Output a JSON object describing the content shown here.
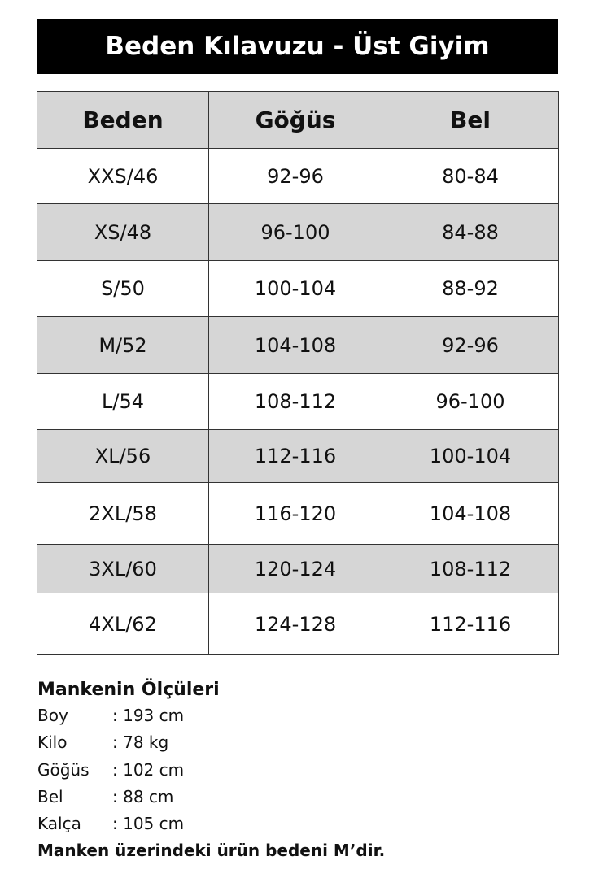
{
  "title": "Beden Kılavuzu - Üst Giyim",
  "table": {
    "headers": [
      "Beden",
      "Göğüs",
      "Bel"
    ],
    "rows": [
      [
        "XXS/46",
        "92-96",
        "80-84"
      ],
      [
        "XS/48",
        "96-100",
        "84-88"
      ],
      [
        "S/50",
        "100-104",
        "88-92"
      ],
      [
        "M/52",
        "104-108",
        "92-96"
      ],
      [
        "L/54",
        "108-112",
        "96-100"
      ],
      [
        "XL/56",
        "112-116",
        "100-104"
      ],
      [
        "2XL/58",
        "116-120",
        "104-108"
      ],
      [
        "3XL/60",
        "120-124",
        "108-112"
      ],
      [
        "4XL/62",
        "124-128",
        "112-116"
      ]
    ]
  },
  "model": {
    "heading": "Mankenin Ölçüleri",
    "items": [
      {
        "label": "Boy",
        "value": ": 193 cm"
      },
      {
        "label": "Kilo",
        "value": ": 78 kg"
      },
      {
        "label": "Göğüs",
        "value": ": 102 cm"
      },
      {
        "label": "Bel",
        "value": ": 88 cm"
      },
      {
        "label": "Kalça",
        "value": ": 105 cm"
      }
    ],
    "note": "Manken üzerindeki ürün bedeni  M’dir."
  },
  "colors": {
    "title_bg": "#000000",
    "stripe": "#d6d6d6"
  }
}
